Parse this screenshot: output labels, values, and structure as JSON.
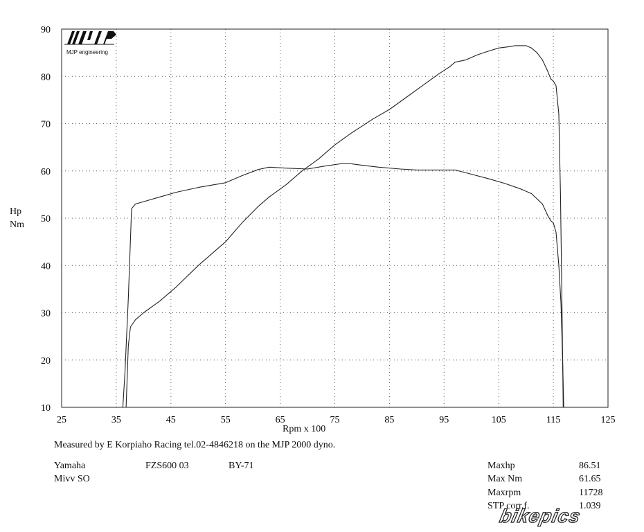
{
  "chart_data": {
    "type": "line",
    "xlabel": "Rpm x 100",
    "ylabel": "Hp\nNm",
    "ylabel_line1": "Hp",
    "ylabel_line2": "Nm",
    "xlim": [
      25,
      125
    ],
    "ylim": [
      10,
      90
    ],
    "xticks": [
      25,
      35,
      45,
      55,
      65,
      75,
      85,
      95,
      105,
      115,
      125
    ],
    "yticks": [
      10,
      20,
      30,
      40,
      50,
      60,
      70,
      80,
      90
    ],
    "grid": true,
    "series": [
      {
        "role": "power",
        "x": [
          36.8,
          37.2,
          37.6,
          38.5,
          40,
          43,
          46,
          50,
          55,
          58,
          61,
          63,
          66,
          69,
          72,
          75,
          78,
          80,
          82,
          85,
          88,
          91,
          94,
          96,
          97,
          99,
          101,
          103,
          105,
          107,
          108,
          109,
          110,
          111,
          112,
          113,
          114,
          114.5,
          115,
          115.5,
          116,
          116.3,
          116.6,
          116.8
        ],
        "y": [
          10,
          23,
          27,
          28.5,
          30,
          32.5,
          35.5,
          40,
          45,
          49,
          52.5,
          54.5,
          57,
          60,
          62.5,
          65.5,
          68,
          69.5,
          71,
          73,
          75.5,
          78,
          80.5,
          82,
          83,
          83.5,
          84.5,
          85.3,
          86,
          86.3,
          86.5,
          86.5,
          86.5,
          86,
          85,
          83.5,
          81,
          79.5,
          79,
          78,
          72,
          55,
          30,
          10
        ]
      },
      {
        "role": "torque",
        "x": [
          36.2,
          36.6,
          37.2,
          37.8,
          38.5,
          40,
          43,
          46,
          50,
          55,
          58,
          61,
          63,
          66,
          70,
          73,
          76,
          78,
          80,
          83,
          87,
          90,
          94,
          97,
          100,
          103,
          106,
          109,
          111,
          113,
          114,
          114.5,
          115,
          115.5,
          116,
          116.4,
          116.7,
          116.9
        ],
        "y": [
          10,
          17.5,
          33,
          52,
          53,
          53.5,
          54.5,
          55.5,
          56.5,
          57.5,
          59,
          60.3,
          60.8,
          60.6,
          60.4,
          61,
          61.5,
          61.5,
          61.2,
          60.8,
          60.4,
          60.2,
          60.2,
          60.2,
          59.3,
          58.4,
          57.4,
          56.2,
          55.2,
          53,
          50.5,
          49.5,
          49,
          47,
          40,
          32,
          20,
          10
        ]
      }
    ]
  },
  "caption": "Measured by E Korpiaho Racing tel.02-4846218 on the MJP 2000 dyno.",
  "logo": {
    "text": "MJP engineering"
  },
  "vehicle": {
    "make": "Yamaha",
    "model": "FZS600 03",
    "code": "BY-71",
    "exhaust": "Mivv SO"
  },
  "specs": [
    {
      "label": "Maxhp",
      "value": "86.51"
    },
    {
      "label": "Max Nm",
      "value": "61.65"
    },
    {
      "label": "Maxrpm",
      "value": "11728"
    },
    {
      "label": "STP corr.f.",
      "value": "1.039"
    }
  ],
  "watermark": "bikepics",
  "colors": {
    "line": "#222222",
    "grid": "#555555",
    "background": "#ffffff"
  }
}
